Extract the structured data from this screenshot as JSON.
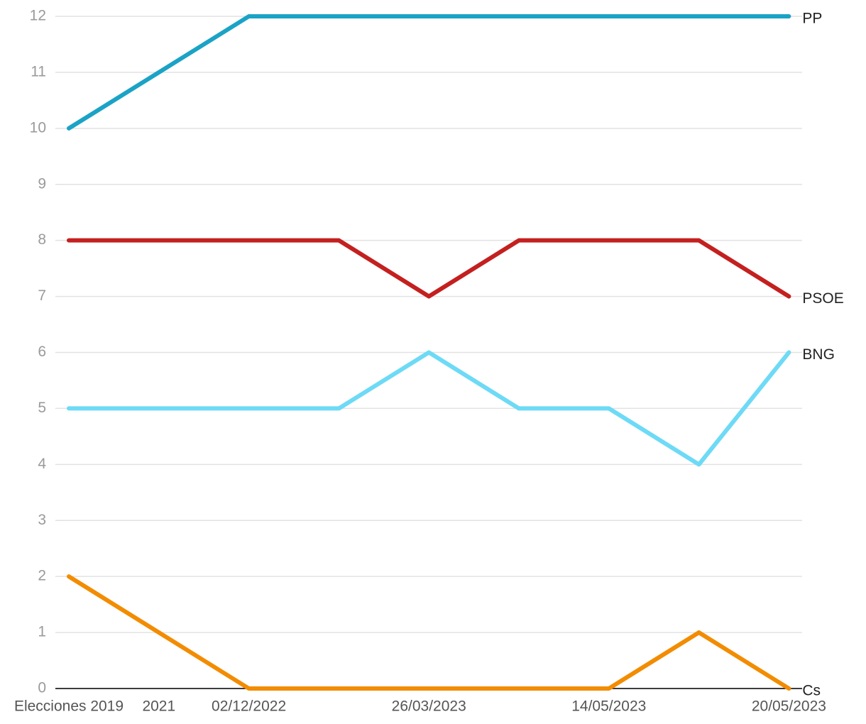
{
  "chart_data": {
    "type": "line",
    "categories": [
      "Elecciones 2019",
      "2021",
      "02/12/2022",
      null,
      "26/03/2023",
      null,
      "14/05/2023",
      null,
      "20/05/2023"
    ],
    "series": [
      {
        "name": "PP",
        "color": "#1ba3c6",
        "values": [
          10,
          11,
          12,
          12,
          12,
          12,
          12,
          12,
          12
        ]
      },
      {
        "name": "PSOE",
        "color": "#c3201f",
        "values": [
          8,
          8,
          8,
          8,
          7,
          8,
          8,
          8,
          7
        ]
      },
      {
        "name": "BNG",
        "color": "#6ddaf6",
        "values": [
          5,
          5,
          5,
          5,
          6,
          5,
          5,
          4,
          6
        ]
      },
      {
        "name": "Cs",
        "color": "#f28c00",
        "values": [
          2,
          1,
          0,
          0,
          0,
          0,
          0,
          1,
          0
        ]
      }
    ],
    "ylim": [
      0,
      12
    ],
    "yticks": [
      0,
      1,
      2,
      3,
      4,
      5,
      6,
      7,
      8,
      9,
      10,
      11,
      12
    ],
    "grid": true
  }
}
